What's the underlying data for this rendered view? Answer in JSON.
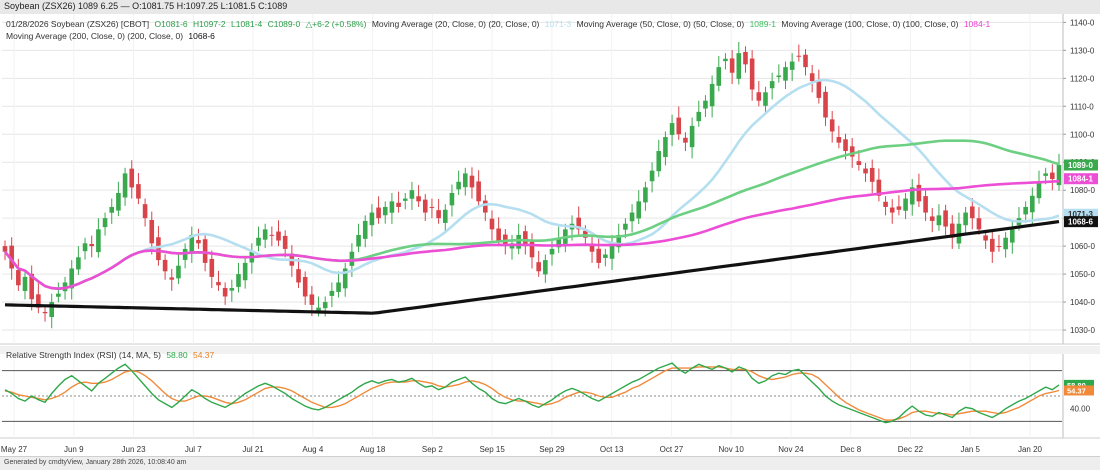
{
  "window": {
    "title": "Soybean (ZSX26) 1089 6.25 — O:1081.75 H:1097.25 L:1081.5 C:1089"
  },
  "legend": {
    "symbol": "01/28/2026 Soybean (ZSX26) [CBOT]",
    "open": "O1081-6",
    "high": "H1097-2",
    "low": "L1081-4",
    "close": "C1089-0",
    "change": "△+6-2 (+0.58%)",
    "ma20_label": "Moving Average (20, Close, 0) (20, Close, 0)",
    "ma20_value": "1071-3",
    "ma50_label": "Moving Average (50, Close, 0) (50, Close, 0)",
    "ma50_value": "1089-1",
    "ma100_label": "Moving Average (100, Close, 0) (100, Close, 0)",
    "ma100_value": "1084-1",
    "ma200_label": "Moving Average (200, Close, 0) (200, Close, 0)",
    "ma200_value": "1068-6"
  },
  "rsi": {
    "label": "Relative Strength Index (RSI) (14, MA, 5)",
    "value_label": "58.80",
    "ma_value_label": "54.37"
  },
  "footer": {
    "text": "Generated by cmdtyView, January 28th 2026, 10:08:40 am"
  },
  "colors": {
    "up_candle": "#3aa94e",
    "down_candle": "#d9434a",
    "ma20": "#b5dff0",
    "ma50": "#6ccf82",
    "ma100": "#ec4ed6",
    "ma200": "#111111",
    "rsi": "#2ea84a",
    "rsi_ma": "#f08a3a",
    "grid": "#e6e6e6"
  },
  "chart_data": [
    {
      "type": "candlestick",
      "title": "Soybean (ZSX26) [CBOT]",
      "x_tick_labels": [
        "May 27",
        "Jun 9",
        "Jun 23",
        "Jul 7",
        "Jul 21",
        "Aug 4",
        "Aug 18",
        "Sep 2",
        "Sep 15",
        "Sep 29",
        "Oct 13",
        "Oct 27",
        "Nov 10",
        "Nov 24",
        "Dec 8",
        "Dec 22",
        "Jan 5",
        "Jan 20"
      ],
      "y_tick_labels": [
        "1030-0",
        "1040-0",
        "1050-0",
        "1060-0",
        "1070-0",
        "1080-0",
        "1090-0",
        "1100-0",
        "1110-0",
        "1120-0",
        "1130-0",
        "1140-0"
      ],
      "ylim": [
        1025,
        1143
      ],
      "last_value_labels": [
        {
          "text": "1089-0",
          "value": 1089,
          "color": "#3aa94e"
        },
        {
          "text": "1084-1",
          "value": 1084.1,
          "color": "#ec4ed6"
        },
        {
          "text": "1071-3",
          "value": 1071.4,
          "color": "#b5dff0"
        },
        {
          "text": "1068-6",
          "value": 1068.75,
          "color": "#111111"
        }
      ],
      "close": [
        1058,
        1052,
        1046,
        1049,
        1041,
        1038,
        1036,
        1040,
        1043,
        1047,
        1052,
        1056,
        1061,
        1060,
        1066,
        1070,
        1074,
        1079,
        1086,
        1081,
        1077,
        1070,
        1061,
        1055,
        1051,
        1048,
        1053,
        1059,
        1064,
        1061,
        1054,
        1049,
        1046,
        1042,
        1045,
        1050,
        1054,
        1058,
        1063,
        1066,
        1064,
        1062,
        1059,
        1053,
        1047,
        1042,
        1039,
        1038,
        1040,
        1044,
        1047,
        1052,
        1058,
        1064,
        1069,
        1072,
        1070,
        1074,
        1076,
        1074,
        1077,
        1080,
        1076,
        1072,
        1074,
        1070,
        1073,
        1079,
        1083,
        1086,
        1081,
        1076,
        1072,
        1066,
        1062,
        1060,
        1061,
        1064,
        1060,
        1056,
        1051,
        1055,
        1059,
        1063,
        1066,
        1068,
        1066,
        1063,
        1058,
        1054,
        1057,
        1061,
        1064,
        1068,
        1072,
        1076,
        1081,
        1087,
        1094,
        1099,
        1104,
        1100,
        1097,
        1103,
        1108,
        1112,
        1118,
        1124,
        1127,
        1122,
        1129,
        1125,
        1116,
        1112,
        1115,
        1119,
        1121,
        1124,
        1126,
        1128,
        1124,
        1119,
        1113,
        1106,
        1101,
        1097,
        1094,
        1092,
        1089,
        1086,
        1083,
        1078,
        1074,
        1072,
        1073,
        1077,
        1081,
        1076,
        1072,
        1069,
        1071,
        1067,
        1063,
        1068,
        1072,
        1070,
        1066,
        1062,
        1058,
        1060,
        1063,
        1066,
        1070,
        1074,
        1078,
        1083,
        1086,
        1084,
        1089
      ],
      "series": [
        {
          "name": "Moving Average (20, Close, 0)",
          "last": 1071.375
        },
        {
          "name": "Moving Average (50, Close, 0)",
          "last": 1089.125
        },
        {
          "name": "Moving Average (100, Close, 0)",
          "last": 1084.125
        },
        {
          "name": "Moving Average (200, Close, 0)",
          "last": 1068.75
        }
      ]
    },
    {
      "type": "line",
      "title": "Relative Strength Index (RSI) (14, MA, 5)",
      "y_tick_labels": [
        "40.00"
      ],
      "ylim": [
        20,
        80
      ],
      "overbought": 70,
      "oversold": 30,
      "midline": 50,
      "last_value_labels": [
        {
          "text": "58.80",
          "value": 58.8,
          "color": "#2ea84a"
        },
        {
          "text": "54.37",
          "value": 54.37,
          "color": "#f08a3a"
        }
      ],
      "series": [
        {
          "name": "RSI",
          "values": [
            55,
            52,
            48,
            46,
            50,
            47,
            45,
            52,
            58,
            63,
            66,
            62,
            58,
            54,
            60,
            64,
            68,
            72,
            75,
            70,
            64,
            58,
            52,
            47,
            44,
            41,
            45,
            50,
            55,
            52,
            48,
            45,
            43,
            41,
            44,
            48,
            52,
            55,
            58,
            60,
            58,
            55,
            52,
            48,
            45,
            42,
            40,
            39,
            41,
            44,
            47,
            50,
            53,
            57,
            60,
            62,
            60,
            62,
            63,
            61,
            62,
            64,
            60,
            57,
            58,
            55,
            57,
            61,
            63,
            65,
            60,
            56,
            53,
            48,
            45,
            44,
            46,
            48,
            46,
            43,
            41,
            44,
            47,
            51,
            54,
            56,
            54,
            51,
            48,
            46,
            49,
            52,
            55,
            58,
            61,
            63,
            66,
            69,
            72,
            74,
            76,
            71,
            68,
            72,
            75,
            73,
            71,
            74,
            72,
            69,
            73,
            71,
            64,
            60,
            62,
            66,
            68,
            67,
            70,
            71,
            66,
            61,
            56,
            50,
            46,
            43,
            41,
            39,
            37,
            35,
            33,
            31,
            29,
            30,
            33,
            38,
            42,
            38,
            35,
            34,
            37,
            35,
            33,
            38,
            41,
            40,
            37,
            35,
            33,
            36,
            40,
            43,
            46,
            48,
            51,
            54,
            57,
            55,
            58.8
          ]
        },
        {
          "name": "MA",
          "values": [
            54,
            53,
            51,
            50,
            49,
            48,
            47,
            48,
            50,
            53,
            57,
            60,
            61,
            60,
            60,
            61,
            63,
            66,
            69,
            70,
            69,
            66,
            62,
            57,
            52,
            48,
            46,
            46,
            48,
            50,
            50,
            49,
            47,
            45,
            44,
            45,
            47,
            50,
            53,
            56,
            57,
            57,
            56,
            54,
            51,
            48,
            45,
            43,
            41,
            41,
            42,
            44,
            47,
            50,
            53,
            56,
            58,
            60,
            61,
            61,
            61,
            62,
            62,
            61,
            60,
            58,
            57,
            58,
            59,
            61,
            62,
            61,
            59,
            56,
            52,
            49,
            47,
            46,
            46,
            45,
            44,
            43,
            44,
            46,
            49,
            51,
            53,
            53,
            52,
            50,
            49,
            49,
            51,
            53,
            56,
            58,
            61,
            64,
            67,
            70,
            72,
            72,
            72,
            72,
            73,
            73,
            73,
            73,
            72,
            71,
            71,
            71,
            69,
            66,
            64,
            63,
            64,
            65,
            67,
            68,
            68,
            67,
            64,
            59,
            54,
            49,
            45,
            42,
            39,
            37,
            35,
            33,
            31,
            31,
            32,
            34,
            37,
            38,
            38,
            37,
            36,
            36,
            35,
            36,
            37,
            38,
            38,
            38,
            37,
            36,
            37,
            39,
            41,
            44,
            47,
            50,
            52,
            53,
            54.37
          ]
        }
      ]
    }
  ]
}
